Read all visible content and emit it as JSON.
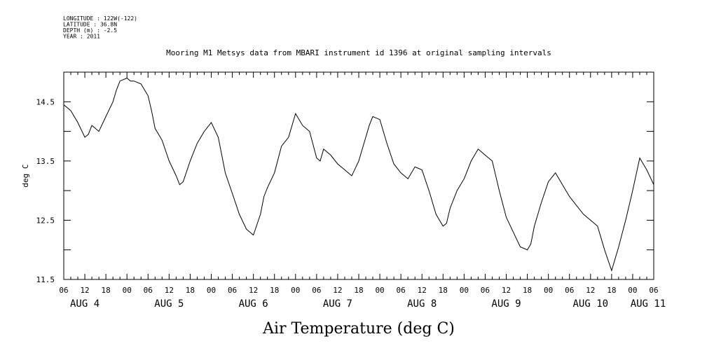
{
  "meta_lines": [
    "LONGITUDE : 122W(-122)",
    "LATITUDE : 36.8N",
    "DEPTH (m) : -2.5",
    "YEAR : 2011"
  ],
  "chart_data": {
    "type": "line",
    "title": "Mooring M1 Metsys data from MBARI instrument id 1396 at original sampling intervals",
    "xlabel": "Air Temperature (deg C)",
    "ylabel": "deg C",
    "ylim": [
      11.5,
      15.0
    ],
    "y_ticks": [
      11.5,
      12.0,
      12.5,
      13.0,
      13.5,
      14.0,
      14.5
    ],
    "y_tick_labels": [
      "11.5",
      "12.5",
      "13.5",
      "14.5"
    ],
    "x_range_hours_label": [
      "AUG 4 06",
      "AUG 11 06"
    ],
    "hour_ticks": [
      "06",
      "12",
      "18",
      "00",
      "06",
      "12",
      "18",
      "00",
      "06",
      "12",
      "18",
      "00",
      "06",
      "12",
      "18",
      "00",
      "06",
      "12",
      "18",
      "00",
      "06",
      "12",
      "18",
      "00",
      "06",
      "12",
      "18",
      "00",
      "06"
    ],
    "date_labels": [
      "AUG 4",
      "AUG 5",
      "AUG 6",
      "AUG 7",
      "AUG 8",
      "AUG 9",
      "AUG 10",
      "AUG 11"
    ],
    "series": [
      {
        "values_hours_from_aug4_06": [
          0,
          2,
          4,
          6,
          7,
          8,
          9,
          10,
          12,
          14,
          15,
          16,
          18,
          19,
          20,
          22,
          24,
          25,
          26,
          27,
          28,
          30,
          32,
          33,
          34,
          36,
          37,
          38,
          40,
          42,
          44,
          45,
          46,
          48,
          50,
          52,
          54,
          56,
          57,
          58,
          60,
          62,
          64,
          66,
          68,
          70,
          72,
          73,
          74,
          76,
          78,
          80,
          81,
          82,
          84,
          86,
          87,
          88,
          90,
          92,
          94,
          96,
          98,
          100,
          102,
          104,
          106,
          108,
          109,
          110,
          112,
          114,
          116,
          118,
          120,
          122,
          124,
          126,
          128,
          130,
          132,
          133,
          134,
          136,
          138,
          140,
          142,
          144,
          146,
          148,
          150,
          152,
          153,
          154,
          156,
          158,
          160,
          162,
          164,
          166,
          168
        ],
        "values": [
          14.45,
          14.35,
          14.15,
          13.9,
          13.95,
          14.1,
          14.05,
          14.0,
          14.25,
          14.5,
          14.7,
          14.85,
          14.9,
          14.85,
          14.85,
          14.8,
          14.6,
          14.35,
          14.05,
          13.95,
          13.85,
          13.5,
          13.25,
          13.1,
          13.15,
          13.5,
          13.65,
          13.8,
          14.0,
          14.15,
          13.9,
          13.6,
          13.3,
          12.95,
          12.6,
          12.35,
          12.25,
          12.6,
          12.9,
          13.05,
          13.3,
          13.75,
          13.9,
          14.3,
          14.1,
          14.0,
          13.55,
          13.5,
          13.7,
          13.6,
          13.45,
          13.35,
          13.3,
          13.25,
          13.5,
          13.9,
          14.1,
          14.25,
          14.2,
          13.8,
          13.45,
          13.3,
          13.2,
          13.4,
          13.35,
          13.0,
          12.6,
          12.4,
          12.45,
          12.7,
          13.0,
          13.2,
          13.5,
          13.7,
          13.6,
          13.5,
          13.0,
          12.55,
          12.3,
          12.05,
          12.0,
          12.1,
          12.4,
          12.8,
          13.15,
          13.3,
          13.1,
          12.9,
          12.75,
          12.6,
          12.5,
          12.4,
          12.2,
          12.0,
          11.65,
          12.05,
          12.5,
          13.0,
          13.55,
          13.35,
          13.1
        ]
      }
    ]
  }
}
